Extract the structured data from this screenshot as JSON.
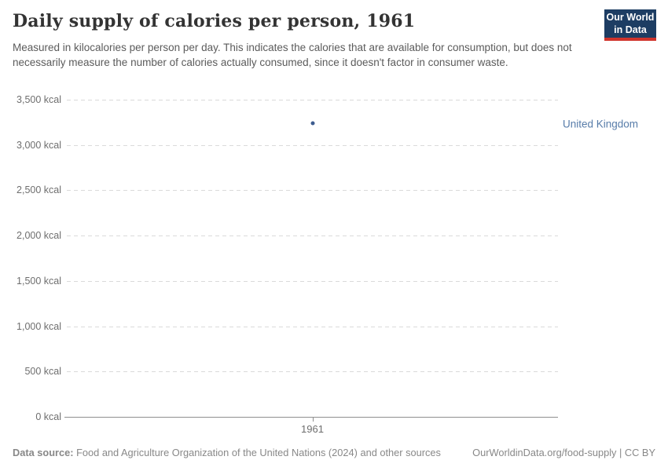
{
  "header": {
    "title": "Daily supply of calories per person, 1961",
    "subtitle": "Measured in kilocalories per person per day. This indicates the calories that are available for consumption, but does not necessarily measure the number of calories actually consumed, since it doesn't factor in consumer waste.",
    "logo": {
      "line1": "Our World",
      "line2": "in Data"
    }
  },
  "chart_data": {
    "type": "scatter",
    "title": "Daily supply of calories per person, 1961",
    "x": [
      1961
    ],
    "x_tick_labels": [
      "1961"
    ],
    "series": [
      {
        "name": "United Kingdom",
        "values": [
          3240
        ],
        "color": "#3d5c8f"
      }
    ],
    "ylim": [
      0,
      3500
    ],
    "y_ticks": [
      0,
      500,
      1000,
      1500,
      2000,
      2500,
      3000,
      3500
    ],
    "y_tick_suffix": " kcal",
    "grid": "horizontal-dashed",
    "legend_position": "entity-label-right-of-plot"
  },
  "footer": {
    "datasource_label": "Data source:",
    "datasource_text": "Food and Agriculture Organization of the United Nations (2024) and other sources",
    "credit": "OurWorldinData.org/food-supply | CC BY"
  },
  "colors": {
    "title": "#333333",
    "subtitle": "#5b5b5b",
    "grid": "#dadada",
    "axis": "#8f8f8f",
    "tick_label": "#6e6e6e",
    "entity_label": "#577ca9",
    "footer": "#888888",
    "logo_bg": "#1d3d63",
    "logo_accent": "#d0342c"
  }
}
